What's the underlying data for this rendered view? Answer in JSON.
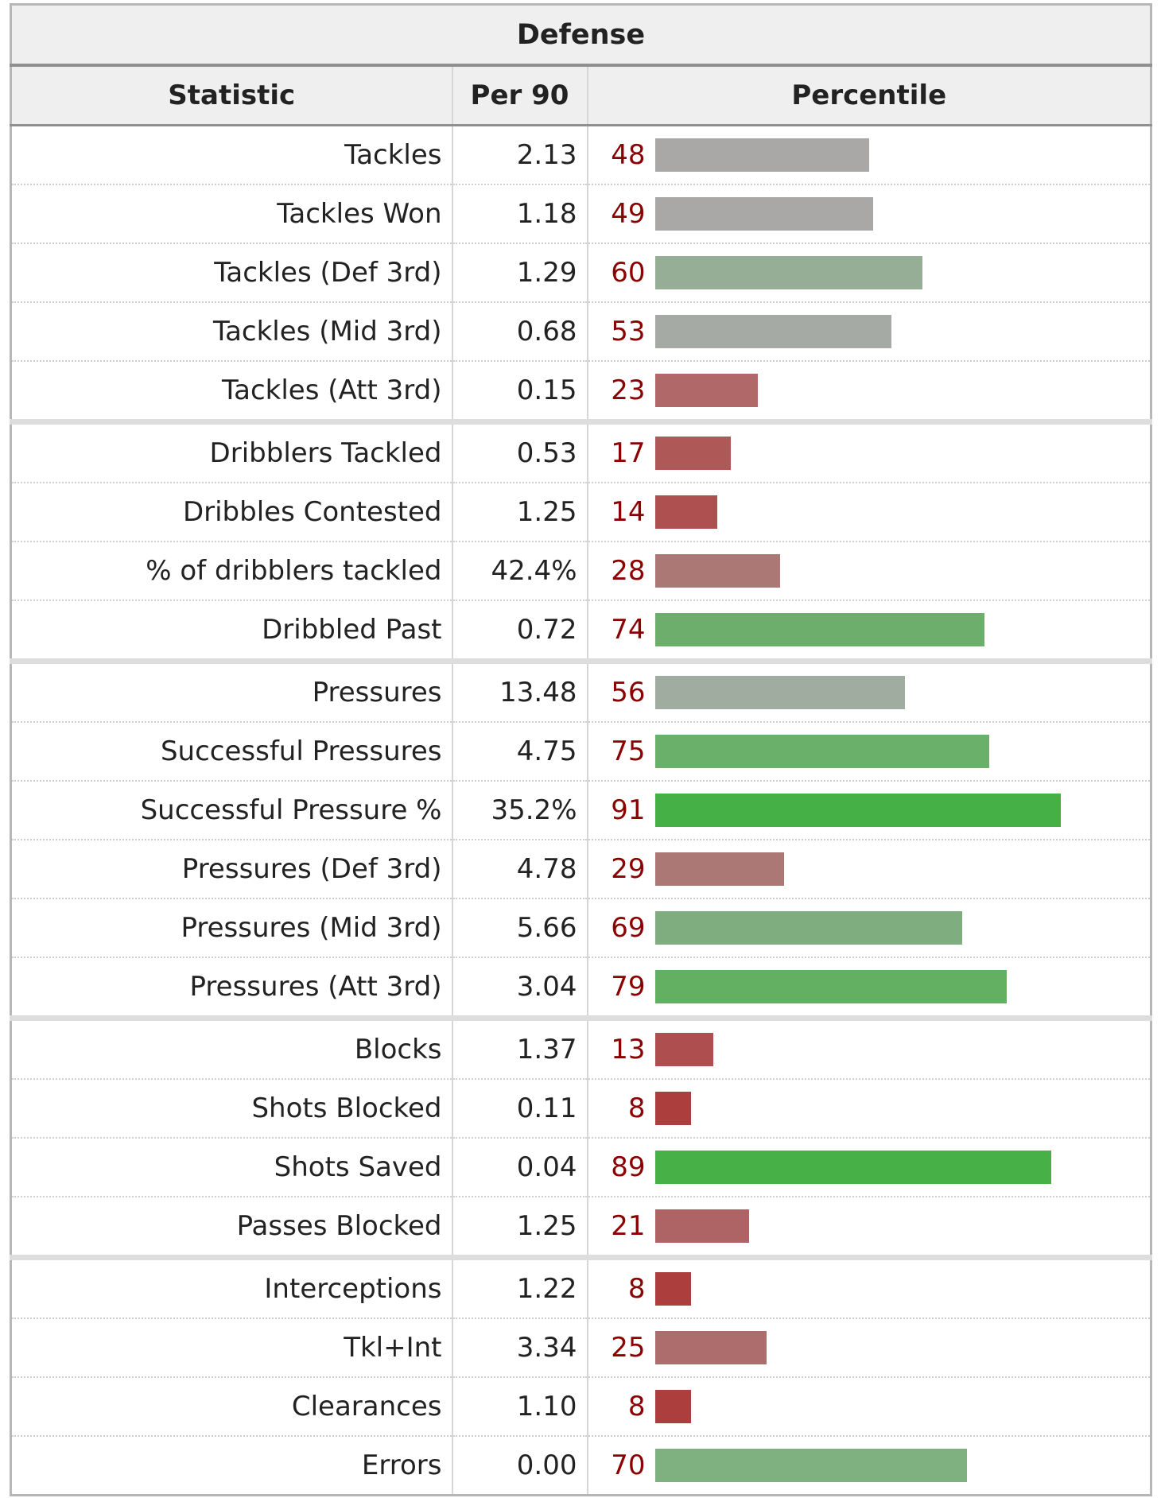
{
  "table": {
    "title": "Defense",
    "columns": [
      "Statistic",
      "Per 90",
      "Percentile"
    ],
    "groups": [
      [
        {
          "stat": "Tackles",
          "per90": "2.13",
          "percentile": "48",
          "color": "#aaa7a7"
        },
        {
          "stat": "Tackles Won",
          "per90": "1.18",
          "percentile": "49",
          "color": "#aaa7a7"
        },
        {
          "stat": "Tackles (Def 3rd)",
          "per90": "1.29",
          "percentile": "60",
          "color": "#96ad96"
        },
        {
          "stat": "Tackles (Mid 3rd)",
          "per90": "0.68",
          "percentile": "53",
          "color": "#a5aaa5"
        },
        {
          "stat": "Tackles (Att 3rd)",
          "per90": "0.15",
          "percentile": "23",
          "color": "#b06868"
        }
      ],
      [
        {
          "stat": "Dribblers Tackled",
          "per90": "0.53",
          "percentile": "17",
          "color": "#ae5858"
        },
        {
          "stat": "Dribbles Contested",
          "per90": "1.25",
          "percentile": "14",
          "color": "#ae5050"
        },
        {
          "stat": "% of dribblers tackled",
          "per90": "42.4%",
          "percentile": "28",
          "color": "#ac7876"
        },
        {
          "stat": "Dribbled Past",
          "per90": "0.72",
          "percentile": "74",
          "color": "#6dae6d"
        }
      ],
      [
        {
          "stat": "Pressures",
          "per90": "13.48",
          "percentile": "56",
          "color": "#a0aca0"
        },
        {
          "stat": "Successful Pressures",
          "per90": "4.75",
          "percentile": "75",
          "color": "#6aaf6a"
        },
        {
          "stat": "Successful Pressure %",
          "per90": "35.2%",
          "percentile": "91",
          "color": "#45b045"
        },
        {
          "stat": "Pressures (Def 3rd)",
          "per90": "4.78",
          "percentile": "29",
          "color": "#ac7876"
        },
        {
          "stat": "Pressures (Mid 3rd)",
          "per90": "5.66",
          "percentile": "69",
          "color": "#80ad80"
        },
        {
          "stat": "Pressures (Att 3rd)",
          "per90": "3.04",
          "percentile": "79",
          "color": "#63b063"
        }
      ],
      [
        {
          "stat": "Blocks",
          "per90": "1.37",
          "percentile": "13",
          "color": "#ae4e4e"
        },
        {
          "stat": "Shots Blocked",
          "per90": "0.11",
          "percentile": "8",
          "color": "#ac3e3e"
        },
        {
          "stat": "Shots Saved",
          "per90": "0.04",
          "percentile": "89",
          "color": "#47b047"
        },
        {
          "stat": "Passes Blocked",
          "per90": "1.25",
          "percentile": "21",
          "color": "#ae6464"
        }
      ],
      [
        {
          "stat": "Interceptions",
          "per90": "1.22",
          "percentile": "8",
          "color": "#ac3e3e"
        },
        {
          "stat": "Tkl+Int",
          "per90": "3.34",
          "percentile": "25",
          "color": "#ae6d6d"
        },
        {
          "stat": "Clearances",
          "per90": "1.10",
          "percentile": "8",
          "color": "#ac3e3e"
        },
        {
          "stat": "Errors",
          "per90": "0.00",
          "percentile": "70",
          "color": "#7fb07f"
        }
      ]
    ]
  }
}
